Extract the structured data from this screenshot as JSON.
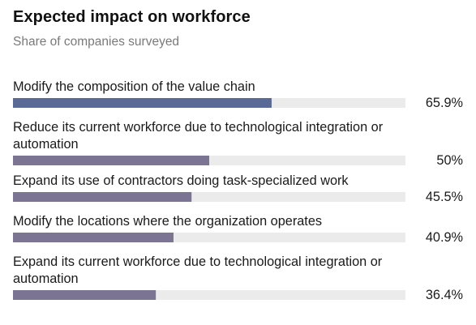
{
  "header": {
    "title": "Expected impact on workforce",
    "subtitle": "Share of companies surveyed"
  },
  "colors": {
    "track": "#ebebeb",
    "bar_top": "#5a6a96",
    "bar_rest": "#7c7493",
    "text": "#1a1a1a"
  },
  "chart_data": {
    "type": "bar",
    "orientation": "horizontal",
    "title": "Expected impact on workforce",
    "subtitle": "Share of companies surveyed",
    "xlim": [
      0,
      100
    ],
    "grid": false,
    "legend": "none",
    "categories": [
      [
        "Modify the composition of the value chain"
      ],
      [
        "Reduce its current workforce due to technological integration or",
        "automation"
      ],
      [
        "Expand its use of contractors doing task-specialized work"
      ],
      [
        "Modify the locations where the organization operates"
      ],
      [
        "Expand its current workforce due to technological integration or",
        "automation"
      ]
    ],
    "values": [
      65.9,
      50,
      45.5,
      40.9,
      36.4
    ],
    "value_labels": [
      "65.9%",
      "50%",
      "45.5%",
      "40.9%",
      "36.4%"
    ],
    "unit": "%"
  }
}
